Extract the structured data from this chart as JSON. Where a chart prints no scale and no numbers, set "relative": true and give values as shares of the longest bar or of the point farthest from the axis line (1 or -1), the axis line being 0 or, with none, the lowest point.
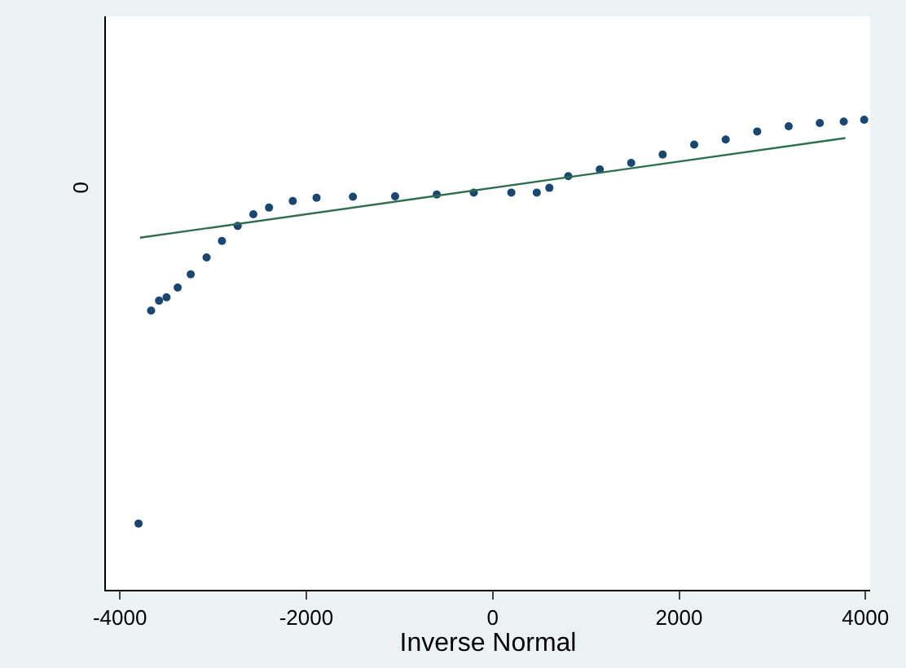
{
  "chart_data": {
    "type": "scatter",
    "xlabel": "Inverse Normal",
    "relative": true,
    "xlim": [
      -4150,
      4050
    ],
    "xticks": [
      -4000,
      -2000,
      0,
      2000,
      4000
    ],
    "annotations": [
      "0"
    ],
    "series": [
      {
        "color": "#1a476f",
        "x": [
          -3800,
          -3665,
          -3580,
          -3500,
          -3380,
          -3240,
          -3070,
          -2905,
          -2736,
          -2568,
          -2400,
          -2145,
          -1890,
          -1500,
          -1047,
          -600,
          -203,
          200,
          473,
          608,
          811,
          1149,
          1486,
          1824,
          2162,
          2500,
          2838,
          3176,
          3510,
          3767,
          3986
        ],
        "values": [
          0.141,
          0.594,
          0.615,
          0.622,
          0.643,
          0.671,
          0.707,
          0.742,
          0.774,
          0.799,
          0.813,
          0.827,
          0.834,
          0.836,
          0.837,
          0.841,
          0.845,
          0.845,
          0.845,
          0.855,
          0.88,
          0.894,
          0.908,
          0.926,
          0.947,
          0.958,
          0.975,
          0.986,
          0.993,
          0.996,
          1
        ]
      },
      {
        "type": "line",
        "color": "#2d6e4e",
        "x": [
          -3784,
          3784
        ],
        "values": [
          0.749,
          0.961
        ]
      }
    ]
  }
}
